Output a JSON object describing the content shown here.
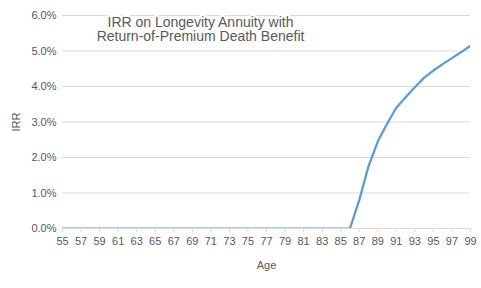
{
  "chart_data": {
    "type": "line",
    "title": "IRR on Longevity Annuity with\nReturn-of-Premium Death Benefit",
    "x_label": "Age",
    "y_label": "IRR",
    "x": [
      55,
      56,
      57,
      58,
      59,
      60,
      61,
      62,
      63,
      64,
      65,
      66,
      67,
      68,
      69,
      70,
      71,
      72,
      73,
      74,
      75,
      76,
      77,
      78,
      79,
      80,
      81,
      82,
      83,
      84,
      85,
      86,
      87,
      88,
      89,
      90,
      91,
      92,
      93,
      94,
      95,
      96,
      97,
      98,
      99
    ],
    "values": [
      0,
      0,
      0,
      0,
      0,
      0,
      0,
      0,
      0,
      0,
      0,
      0,
      0,
      0,
      0,
      0,
      0,
      0,
      0,
      0,
      0,
      0,
      0,
      0,
      0,
      0,
      0,
      0,
      0,
      0,
      0,
      0,
      0.8,
      1.75,
      2.45,
      2.95,
      3.4,
      3.7,
      3.98,
      4.25,
      4.45,
      4.63,
      4.8,
      4.97,
      5.15
    ],
    "color": "#5b9bd5",
    "xlim": [
      55,
      99
    ],
    "xticks": [
      55,
      57,
      59,
      61,
      63,
      65,
      67,
      69,
      71,
      73,
      75,
      77,
      79,
      81,
      83,
      85,
      87,
      89,
      91,
      93,
      95,
      97,
      99
    ],
    "ylim": [
      0,
      6
    ],
    "yticks": [
      {
        "value": 0,
        "label": "0.0%"
      },
      {
        "value": 1,
        "label": "1.0%"
      },
      {
        "value": 2,
        "label": "2.0%"
      },
      {
        "value": 3,
        "label": "3.0%"
      },
      {
        "value": 4,
        "label": "4.0%"
      },
      {
        "value": 5,
        "label": "5.0%"
      },
      {
        "value": 6,
        "label": "6.0%"
      }
    ],
    "grid": true
  }
}
